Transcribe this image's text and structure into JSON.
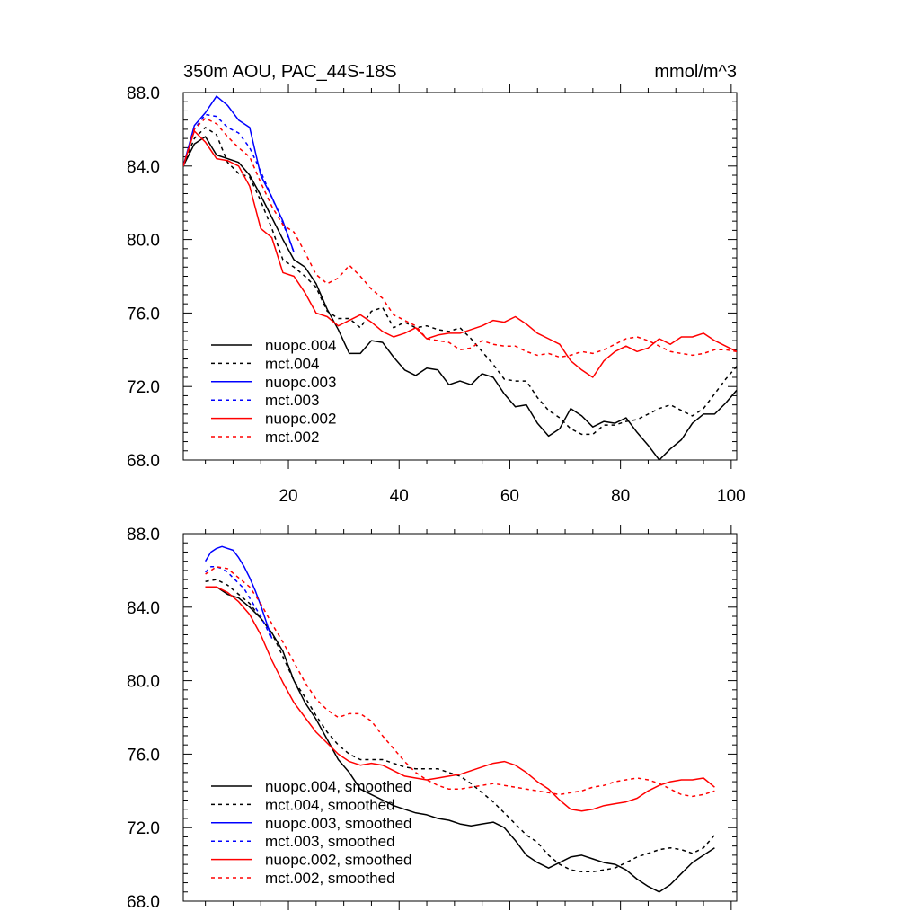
{
  "chart_data": [
    {
      "type": "line",
      "title": "350m AOU, PAC_44S-18S",
      "units": "mmol/m^3",
      "xlim": [
        1,
        101
      ],
      "ylim": [
        68,
        88
      ],
      "xticks": [
        20,
        40,
        60,
        80,
        100
      ],
      "xtick_labels": [
        "20",
        "40",
        "60",
        "80",
        "100"
      ],
      "yticks": [
        68,
        72,
        76,
        80,
        84,
        88
      ],
      "ytick_labels": [
        "68.0",
        "72.0",
        "76.0",
        "80.0",
        "84.0",
        "88.0"
      ],
      "legend_position": "bottom-left",
      "series": [
        {
          "name": "nuopc.004",
          "color": "#000000",
          "dashed": false,
          "x": [
            1,
            3,
            5,
            7,
            9,
            11,
            13,
            15,
            17,
            19,
            21,
            23,
            25,
            27,
            29,
            31,
            33,
            35,
            37,
            39,
            41,
            43,
            45,
            47,
            49,
            51,
            53,
            55,
            57,
            59,
            61,
            63,
            65,
            67,
            69,
            71,
            73,
            75,
            77,
            79,
            81,
            83,
            85,
            87,
            89,
            91,
            93,
            95,
            97,
            99,
            101
          ],
          "y": [
            84.0,
            85.2,
            85.6,
            84.6,
            84.4,
            84.2,
            83.5,
            82.4,
            81.2,
            80.0,
            78.9,
            78.5,
            77.6,
            76.2,
            75.1,
            73.8,
            73.8,
            74.5,
            74.4,
            73.6,
            72.9,
            72.6,
            73.0,
            72.9,
            72.1,
            72.3,
            72.1,
            72.7,
            72.5,
            71.6,
            70.9,
            71.0,
            70.0,
            69.3,
            69.7,
            70.8,
            70.4,
            69.8,
            70.1,
            70.0,
            70.3,
            69.5,
            68.8,
            68.0,
            68.6,
            69.1,
            70.0,
            70.5,
            70.5,
            71.1,
            71.8
          ]
        },
        {
          "name": "mct.004",
          "color": "#000000",
          "dashed": true,
          "x": [
            1,
            3,
            5,
            7,
            9,
            11,
            13,
            15,
            17,
            19,
            21,
            23,
            25,
            27,
            29,
            31,
            33,
            35,
            37,
            39,
            41,
            43,
            45,
            47,
            49,
            51,
            53,
            55,
            57,
            59,
            61,
            63,
            65,
            67,
            69,
            71,
            73,
            75,
            77,
            79,
            81,
            83,
            85,
            87,
            89,
            91,
            93,
            95,
            97,
            99,
            101
          ],
          "y": [
            84.0,
            85.5,
            86.1,
            85.7,
            84.2,
            83.6,
            83.4,
            82.1,
            80.6,
            78.9,
            78.5,
            78.0,
            77.4,
            76.1,
            75.7,
            75.7,
            75.2,
            76.1,
            76.3,
            75.2,
            75.5,
            75.2,
            75.3,
            75.1,
            75.0,
            75.2,
            74.6,
            73.9,
            73.2,
            72.4,
            72.3,
            72.3,
            71.4,
            70.7,
            70.3,
            69.7,
            69.4,
            69.4,
            69.9,
            69.9,
            70.1,
            70.2,
            70.5,
            70.8,
            71.0,
            70.7,
            70.4,
            70.8,
            71.6,
            72.4,
            73.1
          ]
        },
        {
          "name": "nuopc.003",
          "color": "#0000ff",
          "dashed": false,
          "x": [
            1,
            3,
            5,
            7,
            9,
            11,
            13,
            15,
            17,
            19,
            21
          ],
          "y": [
            84.0,
            86.2,
            86.9,
            87.8,
            87.3,
            86.5,
            86.1,
            83.5,
            82.3,
            81.0,
            79.3
          ]
        },
        {
          "name": "mct.003",
          "color": "#0000ff",
          "dashed": true,
          "x": [
            1,
            3,
            5,
            7,
            9,
            11,
            13,
            15,
            17,
            19,
            21
          ],
          "y": [
            84.0,
            86.0,
            86.8,
            86.7,
            86.1,
            85.8,
            85.0,
            83.7,
            82.3,
            80.9,
            79.3
          ]
        },
        {
          "name": "nuopc.002",
          "color": "#ff0000",
          "dashed": false,
          "x": [
            1,
            3,
            5,
            7,
            9,
            11,
            13,
            15,
            17,
            19,
            21,
            23,
            25,
            27,
            29,
            31,
            33,
            35,
            37,
            39,
            41,
            43,
            45,
            47,
            49,
            51,
            53,
            55,
            57,
            59,
            61,
            63,
            65,
            67,
            69,
            71,
            73,
            75,
            77,
            79,
            81,
            83,
            85,
            87,
            89,
            91,
            93,
            95,
            97,
            99,
            101
          ],
          "y": [
            84.0,
            85.9,
            85.3,
            84.4,
            84.3,
            84.0,
            82.9,
            80.6,
            80.1,
            78.2,
            78.0,
            77.1,
            76.0,
            75.8,
            75.3,
            75.6,
            75.9,
            75.5,
            75.0,
            74.7,
            74.9,
            75.2,
            74.6,
            74.8,
            74.9,
            74.9,
            75.1,
            75.3,
            75.6,
            75.5,
            75.8,
            75.4,
            74.9,
            74.6,
            74.3,
            73.4,
            72.9,
            72.5,
            73.4,
            73.9,
            74.2,
            73.9,
            74.1,
            74.6,
            74.3,
            74.7,
            74.7,
            74.9,
            74.5,
            74.2,
            73.9
          ]
        },
        {
          "name": "mct.002",
          "color": "#ff0000",
          "dashed": true,
          "x": [
            1,
            3,
            5,
            7,
            9,
            11,
            13,
            15,
            17,
            19,
            21,
            23,
            25,
            27,
            29,
            31,
            33,
            35,
            37,
            39,
            41,
            43,
            45,
            47,
            49,
            51,
            53,
            55,
            57,
            59,
            61,
            63,
            65,
            67,
            69,
            71,
            73,
            75,
            77,
            79,
            81,
            83,
            85,
            87,
            89,
            91,
            93,
            95,
            97,
            99,
            101
          ],
          "y": [
            84.0,
            86.0,
            86.6,
            86.3,
            85.6,
            85.0,
            84.5,
            83.1,
            81.8,
            80.8,
            80.4,
            79.3,
            78.1,
            77.6,
            77.9,
            78.6,
            78.0,
            77.3,
            76.8,
            75.9,
            75.6,
            75.3,
            74.6,
            74.5,
            74.4,
            74.0,
            74.1,
            74.5,
            74.3,
            74.2,
            74.2,
            73.9,
            73.7,
            73.8,
            73.6,
            73.7,
            73.9,
            73.8,
            74.0,
            74.3,
            74.6,
            74.7,
            74.5,
            74.2,
            73.9,
            73.8,
            73.7,
            73.8,
            74.0,
            74.0,
            73.9
          ]
        }
      ]
    },
    {
      "type": "line",
      "xlim": [
        1,
        101
      ],
      "ylim": [
        68,
        88
      ],
      "yticks": [
        68,
        72,
        76,
        80,
        84,
        88
      ],
      "ytick_labels": [
        "68.0",
        "72.0",
        "76.0",
        "80.0",
        "84.0",
        "88.0"
      ],
      "legend_position": "bottom-left",
      "series": [
        {
          "name": "nuopc.004, smoothed",
          "color": "#000000",
          "dashed": false,
          "x": [
            5,
            7,
            9,
            11,
            13,
            15,
            17,
            19,
            21,
            23,
            25,
            27,
            29,
            31,
            33,
            35,
            37,
            39,
            41,
            43,
            45,
            47,
            49,
            51,
            53,
            55,
            57,
            59,
            61,
            63,
            65,
            67,
            69,
            71,
            73,
            75,
            77,
            79,
            81,
            83,
            85,
            87,
            89,
            91,
            93,
            95,
            97
          ],
          "y": [
            85.1,
            85.1,
            84.7,
            84.5,
            84.0,
            83.4,
            82.6,
            81.6,
            80.0,
            78.8,
            77.9,
            76.8,
            75.7,
            75.0,
            74.1,
            73.8,
            73.5,
            73.2,
            73.0,
            72.8,
            72.7,
            72.5,
            72.4,
            72.2,
            72.1,
            72.2,
            72.3,
            72.0,
            71.3,
            70.5,
            70.1,
            69.8,
            70.1,
            70.4,
            70.5,
            70.3,
            70.1,
            70.0,
            69.7,
            69.2,
            68.8,
            68.5,
            68.9,
            69.5,
            70.1,
            70.5,
            70.9
          ]
        },
        {
          "name": "mct.004, smoothed",
          "color": "#000000",
          "dashed": true,
          "x": [
            5,
            7,
            9,
            11,
            13,
            15,
            17,
            19,
            21,
            23,
            25,
            27,
            29,
            31,
            33,
            35,
            37,
            39,
            41,
            43,
            45,
            47,
            49,
            51,
            53,
            55,
            57,
            59,
            61,
            63,
            65,
            67,
            69,
            71,
            73,
            75,
            77,
            79,
            81,
            83,
            85,
            87,
            89,
            91,
            93,
            95,
            97
          ],
          "y": [
            85.4,
            85.5,
            85.2,
            84.7,
            84.2,
            83.4,
            82.6,
            81.3,
            80.0,
            79.1,
            78.1,
            77.2,
            76.5,
            76.0,
            75.7,
            75.7,
            75.7,
            75.5,
            75.3,
            75.2,
            75.2,
            75.2,
            75.0,
            74.8,
            74.4,
            73.9,
            73.4,
            72.8,
            72.2,
            71.6,
            71.2,
            70.5,
            70.0,
            69.7,
            69.6,
            69.6,
            69.7,
            69.8,
            70.1,
            70.4,
            70.6,
            70.8,
            70.9,
            70.8,
            70.6,
            70.9,
            71.6
          ]
        },
        {
          "name": "nuopc.003, smoothed",
          "color": "#0000ff",
          "dashed": false,
          "x": [
            5,
            6,
            7,
            8,
            9,
            10,
            11,
            12,
            13,
            14,
            15,
            16,
            17
          ],
          "y": [
            86.5,
            87.0,
            87.2,
            87.3,
            87.2,
            87.1,
            86.7,
            86.2,
            85.6,
            84.9,
            84.1,
            83.2,
            82.3
          ]
        },
        {
          "name": "mct.003, smoothed",
          "color": "#0000ff",
          "dashed": true,
          "x": [
            5,
            6,
            7,
            8,
            9,
            10,
            11,
            12,
            13,
            14,
            15,
            16,
            17
          ],
          "y": [
            85.9,
            86.2,
            86.2,
            86.1,
            85.9,
            85.6,
            85.3,
            85.0,
            84.5,
            84.0,
            83.5,
            82.9,
            82.2
          ]
        },
        {
          "name": "nuopc.002, smoothed",
          "color": "#ff0000",
          "dashed": false,
          "x": [
            5,
            7,
            9,
            11,
            13,
            15,
            17,
            19,
            21,
            23,
            25,
            27,
            29,
            31,
            33,
            35,
            37,
            39,
            41,
            43,
            45,
            47,
            49,
            51,
            53,
            55,
            57,
            59,
            61,
            63,
            65,
            67,
            69,
            71,
            73,
            75,
            77,
            79,
            81,
            83,
            85,
            87,
            89,
            91,
            93,
            95,
            97
          ],
          "y": [
            85.1,
            85.1,
            84.8,
            84.3,
            83.6,
            82.5,
            81.1,
            79.9,
            78.8,
            78.0,
            77.2,
            76.6,
            76.0,
            75.6,
            75.4,
            75.5,
            75.4,
            75.1,
            74.8,
            74.7,
            74.6,
            74.7,
            74.8,
            74.9,
            75.1,
            75.3,
            75.5,
            75.6,
            75.4,
            75.0,
            74.5,
            74.1,
            73.5,
            73.0,
            72.9,
            73.0,
            73.2,
            73.3,
            73.4,
            73.6,
            74.0,
            74.3,
            74.5,
            74.6,
            74.6,
            74.7,
            74.2
          ]
        },
        {
          "name": "mct.002, smoothed",
          "color": "#ff0000",
          "dashed": true,
          "x": [
            5,
            7,
            9,
            11,
            13,
            15,
            17,
            19,
            21,
            23,
            25,
            27,
            29,
            31,
            33,
            35,
            37,
            39,
            41,
            43,
            45,
            47,
            49,
            51,
            53,
            55,
            57,
            59,
            61,
            63,
            65,
            67,
            69,
            71,
            73,
            75,
            77,
            79,
            81,
            83,
            85,
            87,
            89,
            91,
            93,
            95,
            97
          ],
          "y": [
            85.8,
            86.2,
            86.1,
            85.6,
            85.1,
            84.2,
            83.1,
            82.1,
            81.0,
            79.9,
            79.0,
            78.4,
            78.0,
            78.2,
            78.2,
            77.8,
            77.0,
            76.3,
            75.6,
            75.0,
            74.6,
            74.3,
            74.1,
            74.1,
            74.2,
            74.3,
            74.4,
            74.3,
            74.2,
            74.1,
            74.0,
            73.9,
            73.8,
            73.9,
            74.0,
            74.2,
            74.3,
            74.5,
            74.6,
            74.7,
            74.6,
            74.4,
            74.1,
            73.8,
            73.7,
            73.8,
            74.0
          ]
        }
      ]
    }
  ]
}
